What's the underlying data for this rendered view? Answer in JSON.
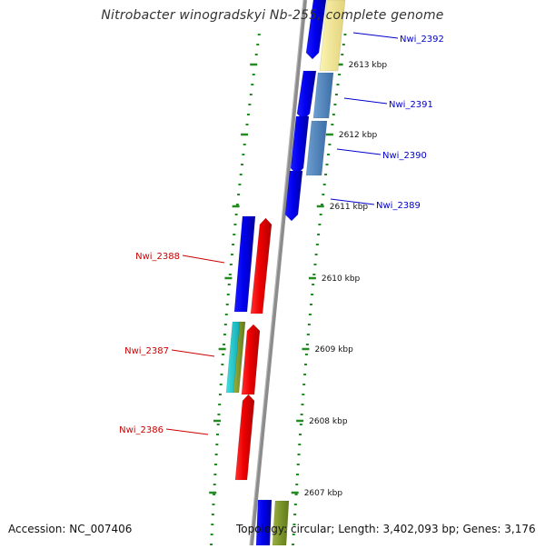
{
  "title": "Nitrobacter winogradskyi Nb-255, complete genome",
  "footer": {
    "accession": "Accession: NC_007406",
    "topology": "Topology: circular; Length: 3,402,093 bp; Genes: 3,176"
  },
  "colors": {
    "forward_label": "#0000cc",
    "reverse_label": "#cc0000",
    "backbone": "#8c8c8c",
    "ticks": "#228b22"
  },
  "scale_labels": [
    "2613 kbp",
    "2612 kbp",
    "2611 kbp",
    "2610 kbp",
    "2609 kbp",
    "2608 kbp",
    "2607 kbp"
  ],
  "genes": [
    {
      "label": "Nwi_2392",
      "strand": "forward"
    },
    {
      "label": "Nwi_2391",
      "strand": "forward"
    },
    {
      "label": "Nwi_2390",
      "strand": "forward"
    },
    {
      "label": "Nwi_2389",
      "strand": "forward"
    },
    {
      "label": "Nwi_2388",
      "strand": "reverse"
    },
    {
      "label": "Nwi_2387",
      "strand": "reverse"
    },
    {
      "label": "Nwi_2386",
      "strand": "reverse"
    }
  ]
}
